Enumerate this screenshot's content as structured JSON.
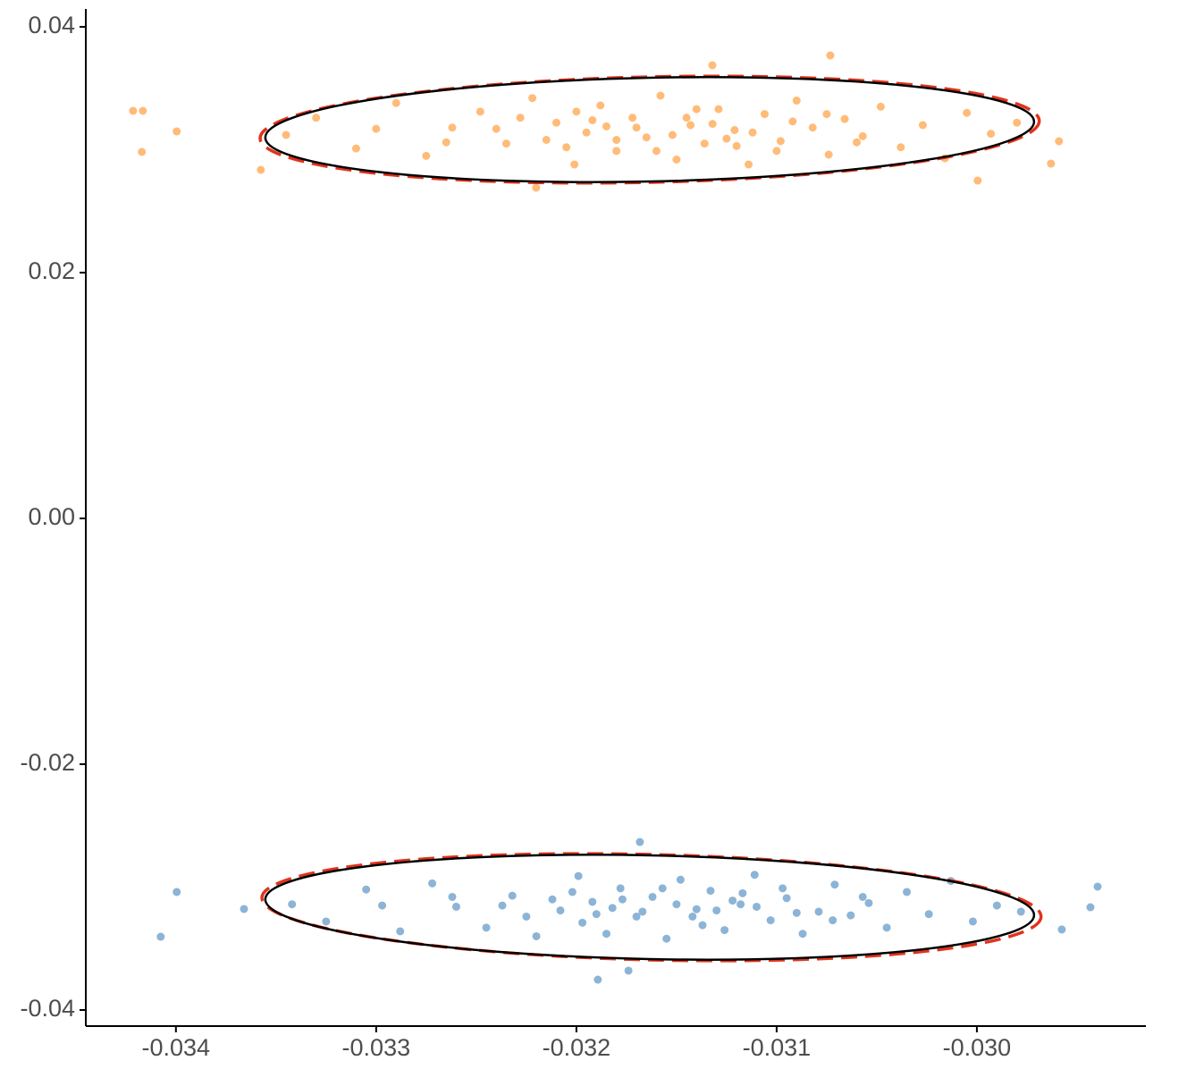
{
  "chart_data": {
    "type": "scatter",
    "xlim": [
      -0.03445,
      -0.029156
    ],
    "ylim": [
      -0.04131,
      0.041455
    ],
    "xticks": [
      -0.034,
      -0.033,
      -0.032,
      -0.031,
      {
        "value": -0.03,
        "label": "-0.030"
      }
    ],
    "yticks": [
      -0.04,
      -0.02,
      {
        "value": 0,
        "label": "0.00"
      },
      0.02,
      0.04
    ],
    "series": [
      {
        "color": "#FFBB78",
        "x": [
          -0.034214,
          -0.034165,
          -0.03417,
          -0.033996,
          -0.033576,
          -0.02959,
          -0.02963,
          -0.029996,
          -0.030732,
          -0.031321,
          -0.032201,
          -0.03345,
          -0.0333,
          -0.0331,
          -0.0329,
          -0.03275,
          -0.03262,
          -0.03248,
          -0.03235,
          -0.03222,
          -0.0321,
          -0.03201,
          -0.03195,
          -0.03188,
          -0.0318,
          -0.03172,
          -0.03165,
          -0.03158,
          -0.0315,
          -0.03143,
          -0.03136,
          -0.03129,
          -0.03121,
          -0.03114,
          -0.03106,
          -0.03098,
          -0.0309,
          -0.03082,
          -0.03074,
          -0.03066,
          -0.03057,
          -0.03048,
          -0.03038,
          -0.03027,
          -0.03016,
          -0.03005,
          -0.02993,
          -0.0298,
          -0.0324,
          -0.03215,
          -0.03192,
          -0.0317,
          -0.03152,
          -0.03132,
          -0.03112,
          -0.03092,
          -0.032,
          -0.0316,
          -0.0312,
          -0.0314,
          -0.0318,
          -0.03228,
          -0.031,
          -0.0306,
          -0.033,
          -0.03265,
          -0.03185,
          -0.03145,
          -0.03125,
          -0.03205,
          -0.03075
        ],
        "values": [
          0.033164,
          0.033164,
          0.02982,
          0.03149,
          0.02836,
          0.03069,
          0.02887,
          0.02749,
          0.03767,
          0.03687,
          0.02691,
          0.0312,
          0.0326,
          0.0301,
          0.0338,
          0.0295,
          0.0318,
          0.0331,
          0.0305,
          0.0342,
          0.0322,
          0.0288,
          0.0314,
          0.0336,
          0.0299,
          0.0326,
          0.031,
          0.0344,
          0.0292,
          0.032,
          0.0305,
          0.0333,
          0.0316,
          0.0288,
          0.0329,
          0.0307,
          0.034,
          0.0318,
          0.0296,
          0.0325,
          0.0311,
          0.0335,
          0.0302,
          0.032,
          0.0293,
          0.033,
          0.0313,
          0.0322,
          0.0317,
          0.0308,
          0.0324,
          0.0318,
          0.0312,
          0.0321,
          0.0314,
          0.0323,
          0.0331,
          0.0299,
          0.0303,
          0.0333,
          0.0308,
          0.0326,
          0.0299,
          0.0306,
          0.0317,
          0.0306,
          0.0319,
          0.0326,
          0.0309,
          0.0302,
          0.0329
        ]
      },
      {
        "color": "#8CB4D6",
        "x": [
          -0.033996,
          -0.034076,
          -0.03366,
          -0.031893,
          -0.031683,
          -0.029397,
          -0.029433,
          -0.029576,
          -0.03174,
          -0.03342,
          -0.03325,
          -0.03305,
          -0.03288,
          -0.03272,
          -0.0326,
          -0.03245,
          -0.03232,
          -0.0322,
          -0.03208,
          -0.03199,
          -0.03192,
          -0.03185,
          -0.03178,
          -0.0317,
          -0.03162,
          -0.03155,
          -0.03148,
          -0.0314,
          -0.03133,
          -0.03126,
          -0.03118,
          -0.03111,
          -0.03103,
          -0.03095,
          -0.03087,
          -0.03079,
          -0.03071,
          -0.03063,
          -0.03054,
          -0.03045,
          -0.03035,
          -0.03024,
          -0.03013,
          -0.03002,
          -0.0299,
          -0.02978,
          -0.03237,
          -0.03212,
          -0.0319,
          -0.03167,
          -0.0315,
          -0.0313,
          -0.0311,
          -0.0309,
          -0.03197,
          -0.03157,
          -0.03117,
          -0.03137,
          -0.03177,
          -0.03225,
          -0.03097,
          -0.03057,
          -0.03297,
          -0.03262,
          -0.03182,
          -0.03142,
          -0.03122,
          -0.03202,
          -0.03072
        ],
        "values": [
          -0.0304,
          -0.03404,
          -0.03178,
          -0.03753,
          -0.02633,
          -0.02996,
          -0.03164,
          -0.03345,
          -0.0368,
          -0.0314,
          -0.0328,
          -0.0302,
          -0.0336,
          -0.0297,
          -0.0316,
          -0.0333,
          -0.0307,
          -0.034,
          -0.0319,
          -0.0291,
          -0.0312,
          -0.0338,
          -0.0301,
          -0.0324,
          -0.0308,
          -0.0342,
          -0.0294,
          -0.0318,
          -0.0303,
          -0.0335,
          -0.0314,
          -0.029,
          -0.0327,
          -0.0309,
          -0.0338,
          -0.032,
          -0.0298,
          -0.0323,
          -0.0313,
          -0.0333,
          -0.0304,
          -0.0322,
          -0.0295,
          -0.0328,
          -0.0315,
          -0.032,
          -0.0315,
          -0.031,
          -0.0322,
          -0.032,
          -0.0314,
          -0.0319,
          -0.0316,
          -0.0321,
          -0.0329,
          -0.0301,
          -0.0305,
          -0.0331,
          -0.031,
          -0.0324,
          -0.0301,
          -0.0308,
          -0.0315,
          -0.0308,
          -0.0317,
          -0.0324,
          -0.0311,
          -0.0304,
          -0.0327
        ]
      }
    ],
    "ellipses": [
      {
        "x": -0.031634,
        "y": 0.031636,
        "rx": 0.001946,
        "ry": 0.00429,
        "angle": -1.3,
        "color": "#E0341C",
        "dashed": true
      },
      {
        "x": -0.031634,
        "y": 0.031636,
        "rx": 0.00192,
        "ry": 0.00422,
        "angle": -1.2,
        "color": "#000000",
        "dashed": false
      },
      {
        "x": -0.031625,
        "y": -0.031636,
        "rx": 0.001946,
        "ry": 0.00429,
        "angle": 1.4,
        "color": "#E0341C",
        "dashed": true
      },
      {
        "x": -0.031634,
        "y": -0.031636,
        "rx": 0.00192,
        "ry": 0.00422,
        "angle": 1.2,
        "color": "#000000",
        "dashed": false
      }
    ]
  }
}
